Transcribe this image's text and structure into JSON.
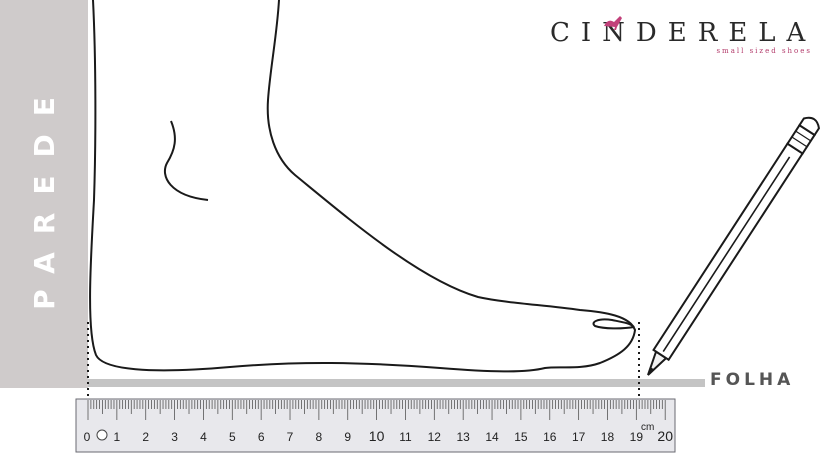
{
  "wall": {
    "label": "PAREDE"
  },
  "paper": {
    "label": "FOLHA"
  },
  "brand": {
    "name": "CINDERELA",
    "tagline": "small sized shoes"
  },
  "ruler": {
    "unit": "cm",
    "numbers": [
      "0",
      "1",
      "2",
      "3",
      "4",
      "5",
      "6",
      "7",
      "8",
      "9",
      "10",
      "11",
      "12",
      "13",
      "14",
      "15",
      "16",
      "17",
      "18",
      "19",
      "20"
    ]
  },
  "colors": {
    "wall": "#cfcbcb",
    "paper": "#c4c4c4",
    "ruler": "#e8e8ec",
    "line": "#1a1a1a",
    "brand_accent": "#c2407a"
  },
  "icons": [
    "pencil-icon",
    "high-heel-shoe-icon"
  ]
}
